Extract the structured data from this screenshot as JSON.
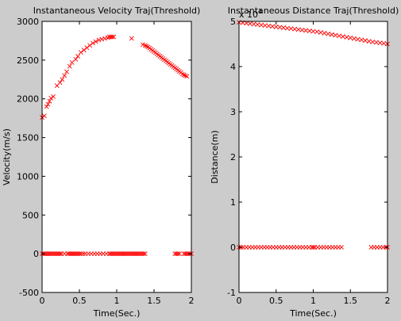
{
  "window": {
    "background": "#cccccc"
  },
  "chart_data": [
    {
      "type": "scatter",
      "title": "Instantaneous Velocity Traj(Threshold)",
      "xlabel": "Time(Sec.)",
      "ylabel": "Velocity(m/s)",
      "xlim": [
        0,
        2
      ],
      "ylim": [
        -500,
        3000
      ],
      "xticks": [
        0,
        0.5,
        1,
        1.5,
        2
      ],
      "xtick_labels": [
        "0",
        "0.5",
        "1",
        "1.5",
        "2"
      ],
      "yticks": [
        -500,
        0,
        500,
        1000,
        1500,
        2000,
        2500,
        3000
      ],
      "ytick_labels": [
        "-500",
        "0",
        "500",
        "1000",
        "1500",
        "2000",
        "2500",
        "3000"
      ],
      "exponent_label": "",
      "marker": "x",
      "marker_color": "#ff0000",
      "grid": false,
      "legend": "none",
      "series": [
        {
          "x": [
            0.0,
            0.03,
            0.06,
            0.08,
            0.1,
            0.12,
            0.15,
            0.2,
            0.24,
            0.27,
            0.3,
            0.33,
            0.37,
            0.4,
            0.45,
            0.48,
            0.52,
            0.56,
            0.6,
            0.64,
            0.68,
            0.72,
            0.76,
            0.8,
            0.84,
            0.88,
            0.9,
            0.92,
            0.94,
            0.96,
            1.2,
            1.35,
            1.38,
            1.4,
            1.42,
            1.44,
            1.46,
            1.48,
            1.5,
            1.52,
            1.54,
            1.56,
            1.58,
            1.6,
            1.62,
            1.64,
            1.66,
            1.68,
            1.7,
            1.72,
            1.74,
            1.76,
            1.78,
            1.8,
            1.82,
            1.84,
            1.86,
            1.88,
            1.9,
            1.92,
            1.94
          ],
          "y": [
            1760,
            1780,
            1900,
            1930,
            1970,
            2010,
            2030,
            2170,
            2210,
            2250,
            2300,
            2350,
            2420,
            2470,
            2510,
            2550,
            2600,
            2630,
            2660,
            2690,
            2720,
            2740,
            2760,
            2770,
            2780,
            2790,
            2800,
            2800,
            2800,
            2800,
            2780,
            2700,
            2690,
            2680,
            2670,
            2655,
            2640,
            2625,
            2610,
            2595,
            2580,
            2565,
            2550,
            2535,
            2520,
            2505,
            2490,
            2475,
            2460,
            2445,
            2430,
            2415,
            2400,
            2385,
            2370,
            2355,
            2340,
            2320,
            2310,
            2300,
            2290
          ]
        },
        {
          "x": [
            0.0,
            0.02,
            0.04,
            0.06,
            0.08,
            0.1,
            0.12,
            0.14,
            0.16,
            0.18,
            0.2,
            0.22,
            0.24,
            0.26,
            0.3,
            0.34,
            0.36,
            0.38,
            0.4,
            0.42,
            0.44,
            0.46,
            0.48,
            0.5,
            0.52,
            0.55,
            0.58,
            0.62,
            0.66,
            0.7,
            0.74,
            0.78,
            0.82,
            0.86,
            0.9,
            0.92,
            0.94,
            0.96,
            0.98,
            1.0,
            1.02,
            1.04,
            1.06,
            1.08,
            1.1,
            1.12,
            1.14,
            1.16,
            1.18,
            1.2,
            1.22,
            1.24,
            1.26,
            1.28,
            1.3,
            1.32,
            1.34,
            1.36,
            1.38,
            1.78,
            1.8,
            1.82,
            1.84,
            1.9,
            1.92,
            1.94,
            1.96,
            1.98,
            2.0
          ],
          "y": [
            0,
            0,
            0,
            0,
            0,
            0,
            0,
            0,
            0,
            0,
            0,
            0,
            0,
            0,
            0,
            0,
            0,
            0,
            0,
            0,
            0,
            0,
            0,
            0,
            0,
            0,
            0,
            0,
            0,
            0,
            0,
            0,
            0,
            0,
            0,
            0,
            0,
            0,
            0,
            0,
            0,
            0,
            0,
            0,
            0,
            0,
            0,
            0,
            0,
            0,
            0,
            0,
            0,
            0,
            0,
            0,
            0,
            0,
            0,
            0,
            0,
            0,
            0,
            0,
            0,
            0,
            0,
            0,
            0
          ]
        }
      ]
    },
    {
      "type": "scatter",
      "title": "Instantaneous Distance Traj(Threshold)",
      "xlabel": "Time(Sec.)",
      "ylabel": "Distance(m)",
      "xlim": [
        0,
        2
      ],
      "ylim": [
        -1,
        5
      ],
      "xticks": [
        0,
        0.5,
        1,
        1.5,
        2
      ],
      "xtick_labels": [
        "0",
        "0.5",
        "1",
        "1.5",
        "2"
      ],
      "yticks": [
        -1,
        0,
        1,
        2,
        3,
        4,
        5
      ],
      "ytick_labels": [
        "-1",
        "0",
        "1",
        "2",
        "3",
        "4",
        "5"
      ],
      "exponent_label": "x 10",
      "exponent_power": "4",
      "marker": "x",
      "marker_color": "#ff0000",
      "grid": false,
      "legend": "none",
      "series": [
        {
          "x": [
            0.0,
            0.05,
            0.1,
            0.15,
            0.2,
            0.25,
            0.3,
            0.35,
            0.4,
            0.45,
            0.5,
            0.55,
            0.6,
            0.65,
            0.7,
            0.75,
            0.8,
            0.85,
            0.9,
            0.95,
            1.0,
            1.05,
            1.1,
            1.15,
            1.2,
            1.25,
            1.3,
            1.35,
            1.4,
            1.45,
            1.5,
            1.55,
            1.6,
            1.65,
            1.7,
            1.75,
            1.8,
            1.85,
            1.9,
            1.95,
            2.0
          ],
          "y": [
            4.98,
            4.97,
            4.96,
            4.95,
            4.94,
            4.93,
            4.92,
            4.91,
            4.9,
            4.89,
            4.88,
            4.87,
            4.86,
            4.85,
            4.84,
            4.83,
            4.82,
            4.81,
            4.8,
            4.79,
            4.78,
            4.77,
            4.755,
            4.74,
            4.725,
            4.71,
            4.695,
            4.68,
            4.665,
            4.65,
            4.635,
            4.62,
            4.605,
            4.59,
            4.575,
            4.56,
            4.545,
            4.535,
            4.525,
            4.515,
            4.5
          ]
        },
        {
          "x": [
            0.0,
            0.03,
            0.06,
            0.1,
            0.14,
            0.18,
            0.22,
            0.26,
            0.3,
            0.34,
            0.38,
            0.42,
            0.46,
            0.5,
            0.54,
            0.58,
            0.62,
            0.66,
            0.7,
            0.74,
            0.78,
            0.82,
            0.86,
            0.9,
            0.94,
            0.98,
            1.0,
            1.02,
            1.06,
            1.1,
            1.14,
            1.18,
            1.22,
            1.26,
            1.3,
            1.34,
            1.38,
            1.78,
            1.82,
            1.86,
            1.9,
            1.94,
            1.98,
            2.0
          ],
          "y": [
            0.0,
            0.0,
            0.0,
            0.0,
            0.0,
            0.0,
            0.0,
            0.0,
            0.0,
            0.0,
            0.0,
            0.0,
            0.0,
            0.0,
            0.0,
            0.0,
            0.0,
            0.0,
            0.0,
            0.0,
            0.0,
            0.0,
            0.0,
            0.0,
            0.0,
            0.0,
            0.0,
            0.0,
            0.0,
            0.0,
            0.0,
            0.0,
            0.0,
            0.0,
            0.0,
            0.0,
            0.0,
            0.0,
            0.0,
            0.0,
            0.0,
            0.0,
            0.0,
            0.0
          ]
        }
      ]
    }
  ]
}
